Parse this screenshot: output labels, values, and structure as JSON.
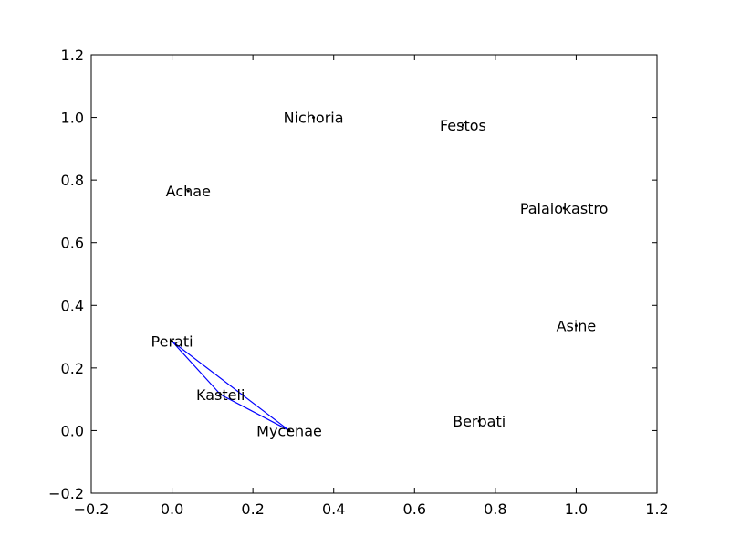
{
  "chart_data": {
    "type": "scatter",
    "title": "",
    "xlabel": "",
    "ylabel": "",
    "xlim": [
      -0.2,
      1.2
    ],
    "ylim": [
      -0.2,
      1.2
    ],
    "xticks": [
      "−0.2",
      "0.0",
      "0.2",
      "0.4",
      "0.6",
      "0.8",
      "1.0",
      "1.2"
    ],
    "yticks": [
      "−0.2",
      "0.0",
      "0.2",
      "0.4",
      "0.6",
      "0.8",
      "1.0",
      "1.2"
    ],
    "grid": false,
    "point_color": "#000000",
    "line_color": "#0000ff",
    "points": [
      {
        "label": "Nichoria",
        "x": 0.35,
        "y": 1.0
      },
      {
        "label": "Festos",
        "x": 0.72,
        "y": 0.975
      },
      {
        "label": "Achae",
        "x": 0.04,
        "y": 0.765
      },
      {
        "label": "Palaiokastro",
        "x": 0.97,
        "y": 0.71
      },
      {
        "label": "Asine",
        "x": 1.0,
        "y": 0.335
      },
      {
        "label": "Perati",
        "x": 0.0,
        "y": 0.285
      },
      {
        "label": "Kasteli",
        "x": 0.12,
        "y": 0.115
      },
      {
        "label": "Berbati",
        "x": 0.76,
        "y": 0.03
      },
      {
        "label": "Mycenae",
        "x": 0.29,
        "y": 0.0
      }
    ],
    "connections": [
      [
        "Perati",
        "Mycenae"
      ],
      [
        "Perati",
        "Kasteli"
      ],
      [
        "Kasteli",
        "Mycenae"
      ]
    ]
  }
}
